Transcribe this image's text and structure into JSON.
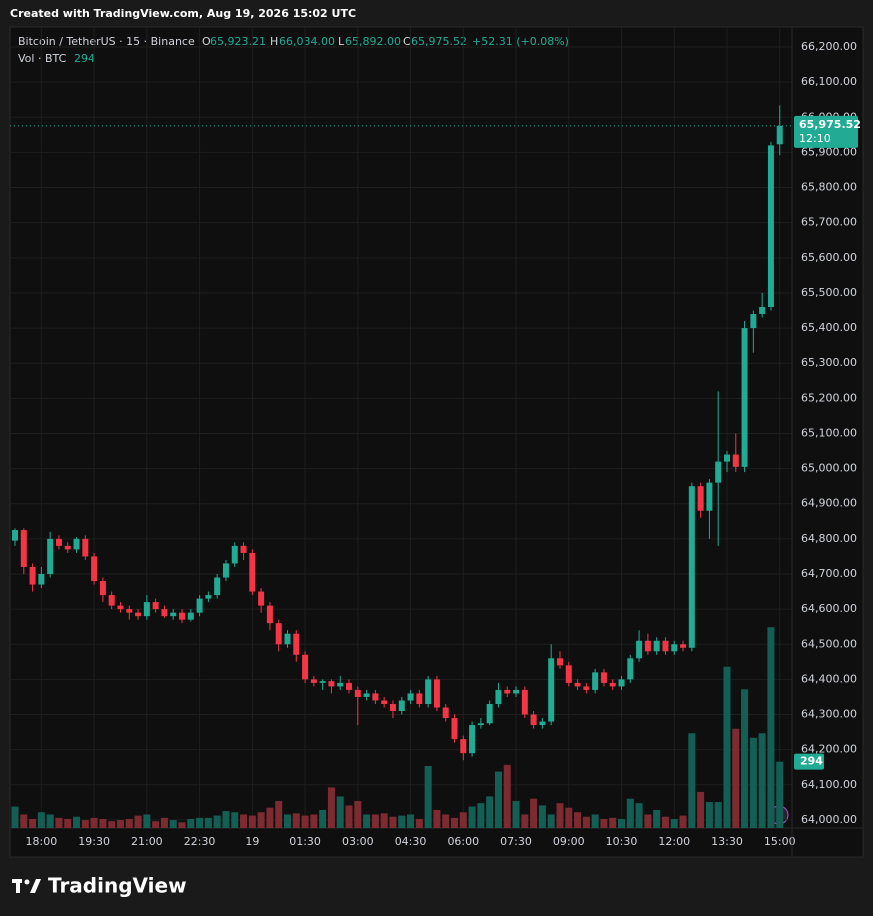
{
  "chart_data": {
    "type": "candlestick",
    "created": "Created with TradingView.com, Aug 19, 2026 15:02 UTC",
    "legend": {
      "symbol": "Bitcoin / TetherUS · 15 · Binance",
      "o": "O",
      "open": "65,923.21",
      "h": "H",
      "high": "66,034.00",
      "l": "L",
      "low": "65,892.00",
      "c": "C",
      "close": "65,975.52",
      "change": "+52.31 (+0.08%)",
      "volume": "Vol · BTC"
    },
    "last_price_label": "65,975.52",
    "countdown": "12:10",
    "brand": "TradingView",
    "up_color": "#22ab94",
    "down_color": "#f23645",
    "volume_up_color": "#145f55",
    "volume_down_color": "#7d2a31",
    "grid": true,
    "ylim": [
      63977,
      66257
    ],
    "vol_ylim": [
      0,
      900
    ],
    "yticks": [
      {
        "value": 64000,
        "label": "64,000.00"
      },
      {
        "value": 64100,
        "label": "64,100.00"
      },
      {
        "value": 64200,
        "label": "64,200.00"
      },
      {
        "value": 64300,
        "label": "64,300.00"
      },
      {
        "value": 64400,
        "label": "64,400.00"
      },
      {
        "value": 64500,
        "label": "64,500.00"
      },
      {
        "value": 64600,
        "label": "64,600.00"
      },
      {
        "value": 64700,
        "label": "64,700.00"
      },
      {
        "value": 64800,
        "label": "64,800.00"
      },
      {
        "value": 64900,
        "label": "64,900.00"
      },
      {
        "value": 65000,
        "label": "65,000.00"
      },
      {
        "value": 65100,
        "label": "65,100.00"
      },
      {
        "value": 65200,
        "label": "65,200.00"
      },
      {
        "value": 65300,
        "label": "65,300.00"
      },
      {
        "value": 65400,
        "label": "65,400.00"
      },
      {
        "value": 65500,
        "label": "65,500.00"
      },
      {
        "value": 65600,
        "label": "65,600.00"
      },
      {
        "value": 65700,
        "label": "65,700.00"
      },
      {
        "value": 65800,
        "label": "65,800.00"
      },
      {
        "value": 65900,
        "label": "65,900.00"
      },
      {
        "value": 66000,
        "label": "66,000.00"
      },
      {
        "value": 66100,
        "label": "66,100.00"
      },
      {
        "value": 66200,
        "label": "66,200.00"
      }
    ],
    "categories": [
      null,
      null,
      null,
      "18:00",
      null,
      null,
      null,
      null,
      null,
      "19:30",
      null,
      null,
      null,
      null,
      null,
      "21:00",
      null,
      null,
      null,
      null,
      null,
      "22:30",
      null,
      null,
      null,
      null,
      null,
      "19",
      null,
      null,
      null,
      null,
      null,
      "01:30",
      null,
      null,
      null,
      null,
      null,
      "03:00",
      null,
      null,
      null,
      null,
      null,
      "04:30",
      null,
      null,
      null,
      null,
      null,
      "06:00",
      null,
      null,
      null,
      null,
      null,
      "07:30",
      null,
      null,
      null,
      null,
      null,
      "09:00",
      null,
      null,
      null,
      null,
      null,
      "10:30",
      null,
      null,
      null,
      null,
      null,
      "12:00",
      null,
      null,
      null,
      null,
      null,
      "13:30",
      null,
      null,
      null,
      null,
      null,
      "15:00"
    ],
    "ohlc": [
      [
        64795,
        64830,
        64780,
        64825
      ],
      [
        64825,
        64830,
        64700,
        64720
      ],
      [
        64720,
        64730,
        64650,
        64670
      ],
      [
        64670,
        64720,
        64660,
        64700
      ],
      [
        64700,
        64820,
        64690,
        64800
      ],
      [
        64800,
        64810,
        64770,
        64780
      ],
      [
        64780,
        64790,
        64760,
        64770
      ],
      [
        64770,
        64805,
        64760,
        64800
      ],
      [
        64800,
        64810,
        64740,
        64750
      ],
      [
        64750,
        64760,
        64670,
        64680
      ],
      [
        64680,
        64690,
        64620,
        64640
      ],
      [
        64640,
        64650,
        64600,
        64610
      ],
      [
        64610,
        64620,
        64590,
        64600
      ],
      [
        64600,
        64610,
        64570,
        64590
      ],
      [
        64590,
        64600,
        64570,
        64580
      ],
      [
        64580,
        64640,
        64570,
        64620
      ],
      [
        64620,
        64630,
        64590,
        64600
      ],
      [
        64600,
        64610,
        64575,
        64580
      ],
      [
        64580,
        64600,
        64570,
        64590
      ],
      [
        64590,
        64600,
        64560,
        64570
      ],
      [
        64570,
        64600,
        64565,
        64590
      ],
      [
        64590,
        64640,
        64580,
        64630
      ],
      [
        64630,
        64650,
        64620,
        64640
      ],
      [
        64640,
        64700,
        64630,
        64690
      ],
      [
        64690,
        64740,
        64680,
        64730
      ],
      [
        64730,
        64790,
        64720,
        64780
      ],
      [
        64780,
        64790,
        64740,
        64760
      ],
      [
        64760,
        64770,
        64640,
        64650
      ],
      [
        64650,
        64660,
        64590,
        64610
      ],
      [
        64610,
        64620,
        64540,
        64560
      ],
      [
        64560,
        64570,
        64480,
        64500
      ],
      [
        64500,
        64540,
        64490,
        64530
      ],
      [
        64530,
        64540,
        64450,
        64470
      ],
      [
        64470,
        64480,
        64390,
        64400
      ],
      [
        64400,
        64410,
        64380,
        64390
      ],
      [
        64390,
        64400,
        64370,
        64395
      ],
      [
        64395,
        64400,
        64360,
        64380
      ],
      [
        64380,
        64410,
        64370,
        64390
      ],
      [
        64390,
        64400,
        64360,
        64370
      ],
      [
        64370,
        64380,
        64270,
        64350
      ],
      [
        64350,
        64370,
        64340,
        64360
      ],
      [
        64360,
        64370,
        64330,
        64340
      ],
      [
        64340,
        64350,
        64320,
        64330
      ],
      [
        64330,
        64340,
        64290,
        64310
      ],
      [
        64310,
        64350,
        64300,
        64340
      ],
      [
        64340,
        64370,
        64330,
        64360
      ],
      [
        64360,
        64370,
        64320,
        64330
      ],
      [
        64330,
        64410,
        64320,
        64400
      ],
      [
        64400,
        64410,
        64310,
        64320
      ],
      [
        64320,
        64330,
        64280,
        64290
      ],
      [
        64290,
        64300,
        64220,
        64230
      ],
      [
        64230,
        64240,
        64170,
        64190
      ],
      [
        64190,
        64280,
        64180,
        64270
      ],
      [
        64270,
        64290,
        64260,
        64275
      ],
      [
        64275,
        64340,
        64270,
        64330
      ],
      [
        64330,
        64390,
        64320,
        64370
      ],
      [
        64370,
        64380,
        64350,
        64360
      ],
      [
        64360,
        64380,
        64350,
        64370
      ],
      [
        64370,
        64380,
        64290,
        64300
      ],
      [
        64300,
        64310,
        64260,
        64270
      ],
      [
        64270,
        64290,
        64260,
        64280
      ],
      [
        64280,
        64500,
        64270,
        64460
      ],
      [
        64460,
        64480,
        64430,
        64440
      ],
      [
        64440,
        64450,
        64380,
        64390
      ],
      [
        64390,
        64400,
        64370,
        64380
      ],
      [
        64380,
        64390,
        64360,
        64370
      ],
      [
        64370,
        64430,
        64360,
        64420
      ],
      [
        64420,
        64430,
        64380,
        64390
      ],
      [
        64390,
        64400,
        64370,
        64380
      ],
      [
        64380,
        64410,
        64370,
        64400
      ],
      [
        64400,
        64470,
        64390,
        64460
      ],
      [
        64460,
        64540,
        64450,
        64510
      ],
      [
        64510,
        64530,
        64470,
        64480
      ],
      [
        64480,
        64520,
        64470,
        64510
      ],
      [
        64510,
        64520,
        64470,
        64480
      ],
      [
        64480,
        64510,
        64470,
        64500
      ],
      [
        64500,
        64510,
        64480,
        64490
      ],
      [
        64490,
        64960,
        64480,
        64950
      ],
      [
        64950,
        64960,
        64860,
        64880
      ],
      [
        64880,
        64970,
        64800,
        64960
      ],
      [
        64960,
        65220,
        64780,
        65020
      ],
      [
        65020,
        65050,
        64990,
        65040
      ],
      [
        65040,
        65100,
        64990,
        65005
      ],
      [
        65005,
        65420,
        64990,
        65400
      ],
      [
        65400,
        65450,
        65330,
        65440
      ],
      [
        65440,
        65500,
        65430,
        65460
      ],
      [
        65460,
        65930,
        65450,
        65920
      ],
      [
        65923.21,
        66034,
        65892,
        65975.52
      ]
    ],
    "volumes": [
      95,
      60,
      40,
      70,
      60,
      45,
      40,
      50,
      35,
      45,
      40,
      30,
      35,
      40,
      55,
      60,
      30,
      45,
      35,
      25,
      40,
      45,
      45,
      55,
      75,
      70,
      60,
      55,
      70,
      90,
      120,
      60,
      65,
      55,
      60,
      80,
      180,
      140,
      100,
      120,
      60,
      60,
      65,
      50,
      55,
      60,
      40,
      275,
      80,
      60,
      45,
      70,
      95,
      110,
      140,
      250,
      280,
      120,
      60,
      130,
      100,
      60,
      110,
      90,
      70,
      50,
      60,
      40,
      45,
      40,
      130,
      110,
      60,
      80,
      50,
      40,
      55,
      420,
      160,
      115,
      115,
      715,
      440,
      615,
      400,
      420,
      890,
      294
    ]
  }
}
